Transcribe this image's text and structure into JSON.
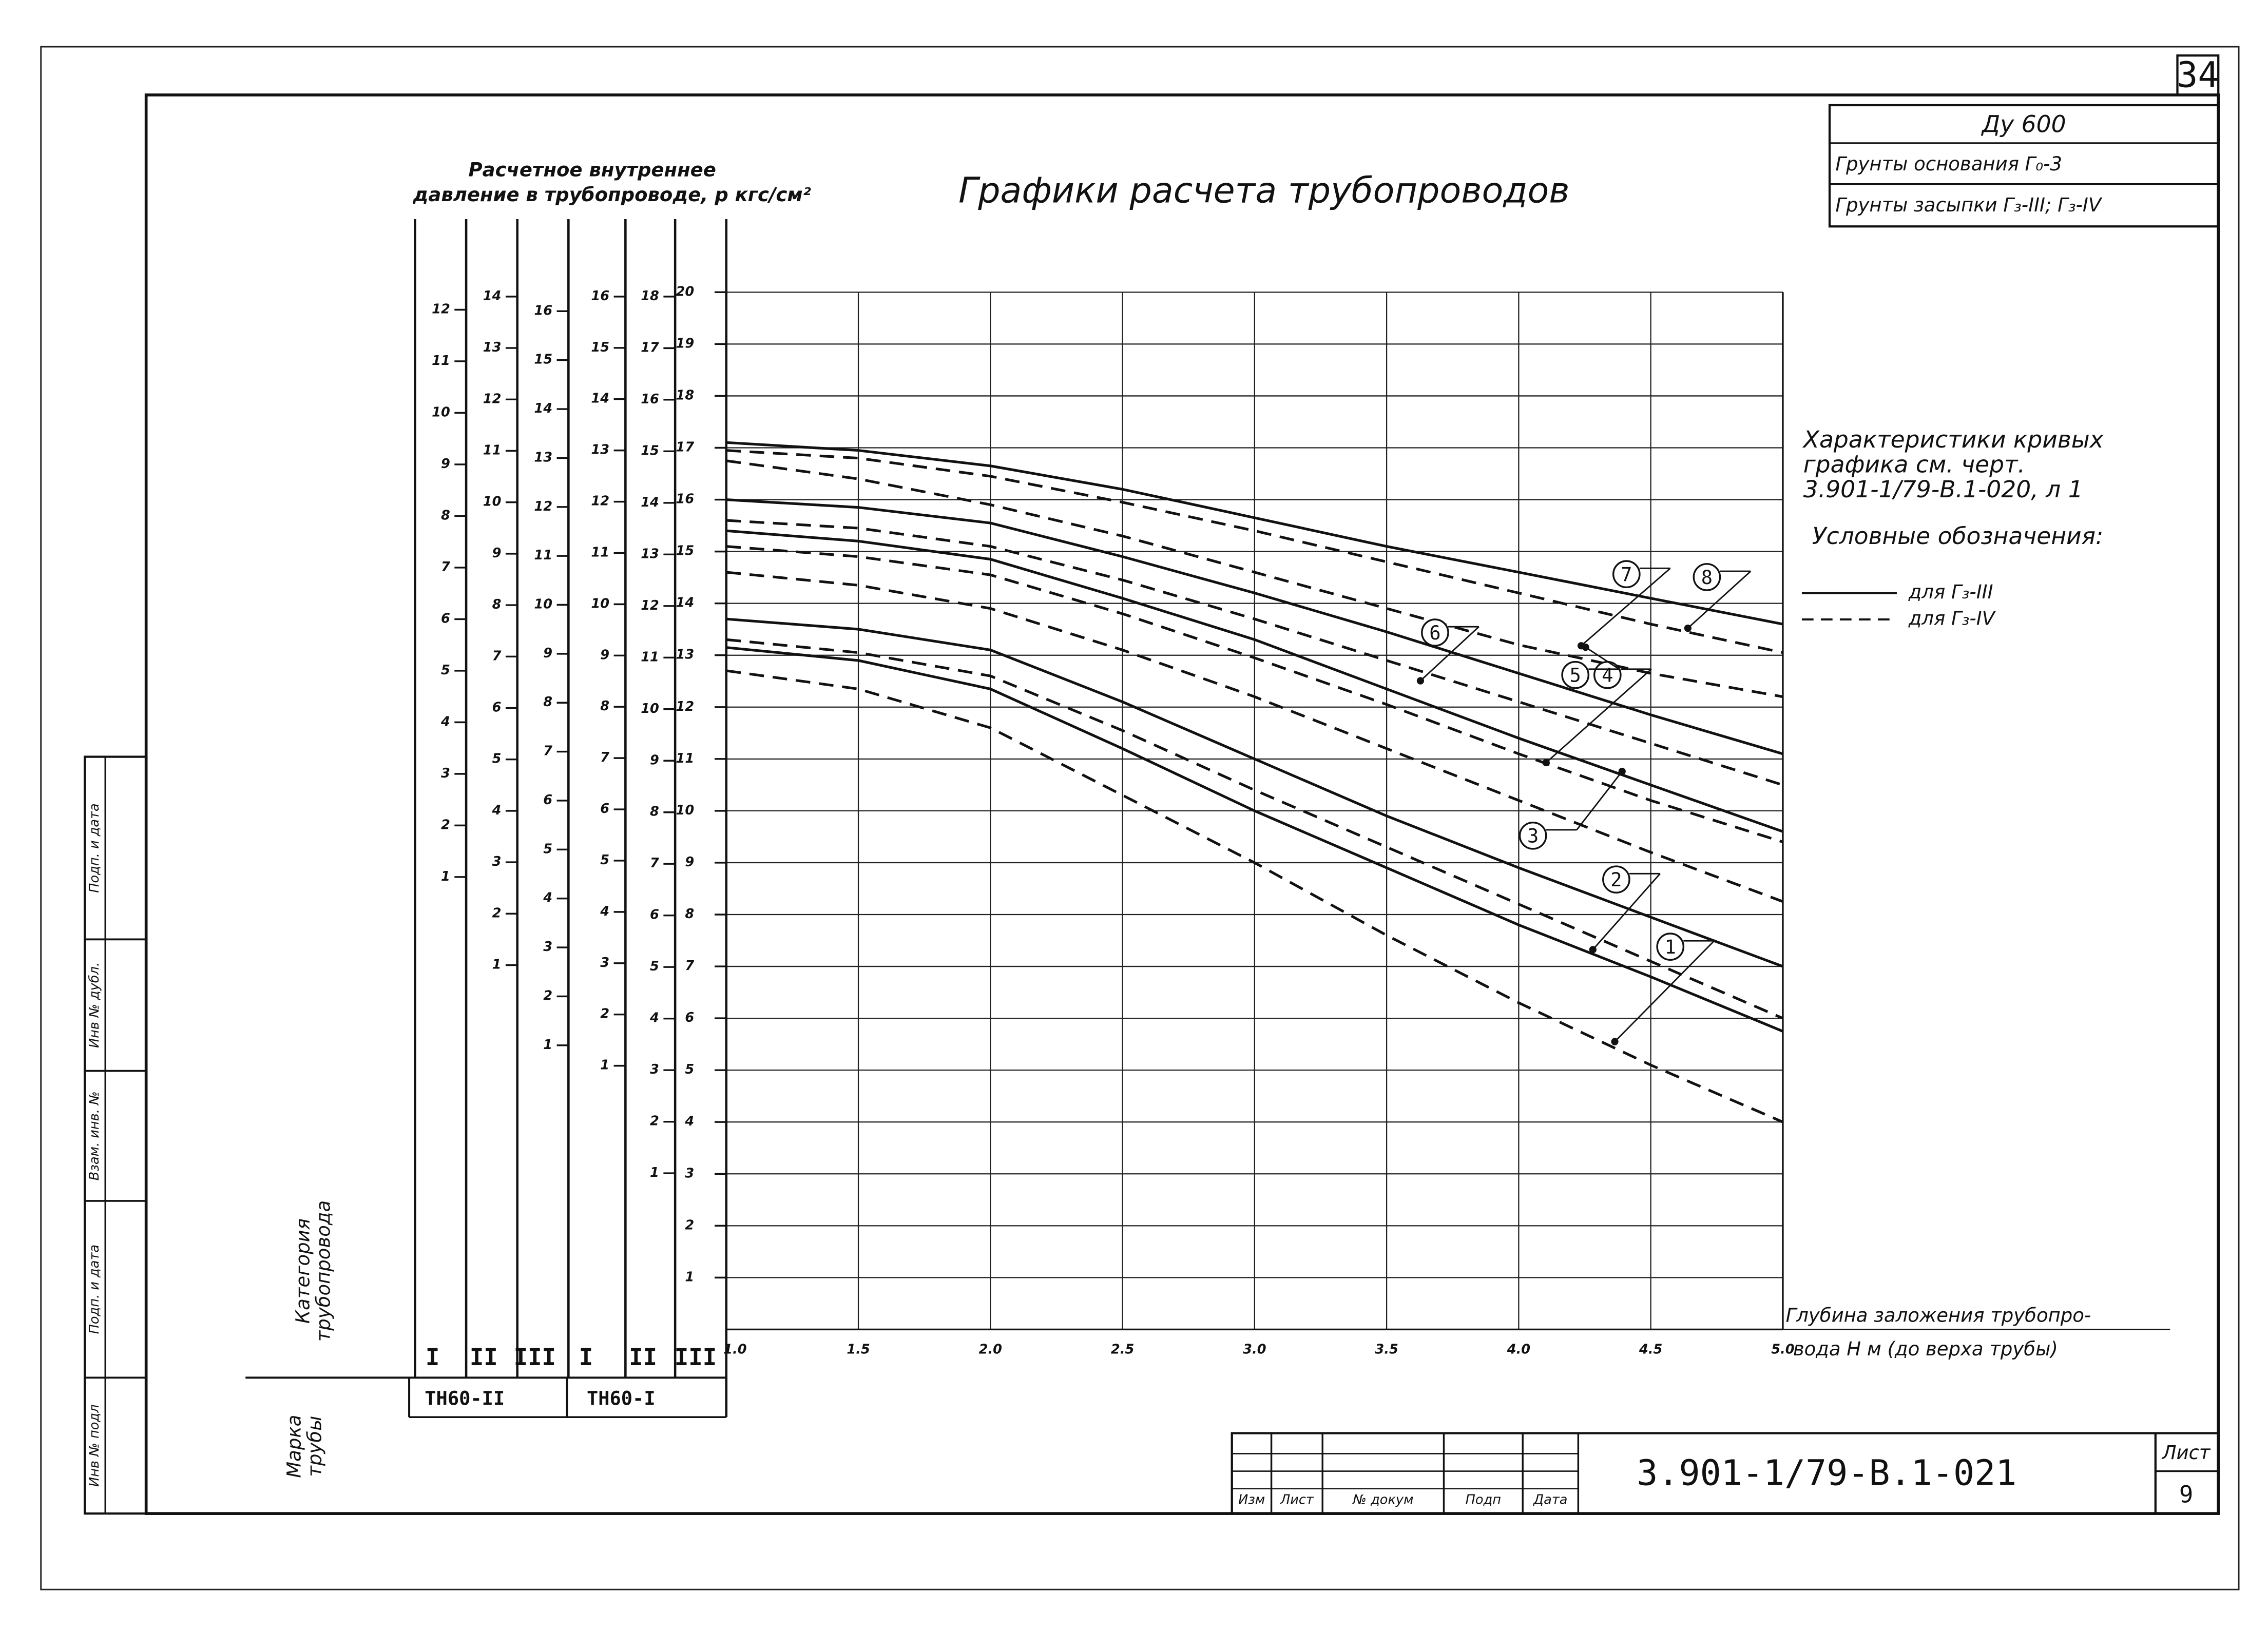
{
  "page_number": "34",
  "stamp": {
    "dn": "Ду 600",
    "base_soil": "Грунты основания Г₀-3",
    "fill_soil": "Грунты засыпки Г₃-III; Г₃-IV"
  },
  "pressure_label": [
    "Расчетное внутреннее",
    "давление в трубопроводе, р кгс/см²"
  ],
  "curve_note": [
    "Характеристики кривых",
    "графика см. черт.",
    "3.901-1/79-В.1-020, л 1"
  ],
  "legend": {
    "title": "Условные обозначения:",
    "solid": "для Г₃-III",
    "dashed": "для Г₃-IV"
  },
  "scales": {
    "category_label": [
      "Категория",
      "трубопровода"
    ],
    "brand_label": [
      "Марка",
      "трубы"
    ],
    "categories": [
      "I",
      "II",
      "III",
      "I",
      "II",
      "III"
    ],
    "brands": [
      "ТН60-II",
      "ТН60-I"
    ],
    "ticks": [
      [
        1,
        2,
        3,
        4,
        5,
        6,
        7,
        8,
        9,
        10,
        11,
        12
      ],
      [
        1,
        2,
        3,
        4,
        5,
        6,
        7,
        8,
        9,
        10,
        11,
        12,
        13,
        14
      ],
      [
        1,
        2,
        3,
        4,
        5,
        6,
        7,
        8,
        9,
        10,
        11,
        12,
        13,
        14,
        15,
        16
      ],
      [
        1,
        2,
        3,
        4,
        5,
        6,
        7,
        8,
        9,
        10,
        11,
        12,
        13,
        14,
        15,
        16
      ],
      [
        1,
        2,
        3,
        4,
        5,
        6,
        7,
        8,
        9,
        10,
        11,
        12,
        13,
        14,
        15,
        16,
        17,
        18
      ]
    ]
  },
  "margin_stamps": [
    "Инв № подл",
    "Подп. и дата",
    "Взам. инв. №",
    "Инв № дубл.",
    "Подп. и дата"
  ],
  "title_block": {
    "headers": [
      "Изм",
      "Лист",
      "№ докум",
      "Подп",
      "Дата"
    ],
    "code": "3.901-1/79-В.1-021",
    "sheet_label": "Лист",
    "sheet": "9"
  },
  "chart_data": {
    "type": "line",
    "title": "Графики расчета трубопроводов",
    "xlabel": [
      "Глубина заложения трубопро-",
      "вода Н м (до верха трубы)"
    ],
    "x": [
      1.0,
      1.5,
      2.0,
      2.5,
      3.0,
      3.5,
      4.0,
      4.5,
      5.0
    ],
    "xlim": [
      1,
      5
    ],
    "ylim": [
      0,
      20
    ],
    "xticks": [
      {
        "value": 1,
        "label": "1.0"
      },
      1.5,
      {
        "value": 2,
        "label": "2.0"
      },
      2.5,
      {
        "value": 3,
        "label": "3.0"
      },
      3.5,
      {
        "value": 4,
        "label": "4.0"
      },
      4.5,
      {
        "value": 5,
        "label": "5.0"
      }
    ],
    "yticks": [
      1,
      2,
      3,
      4,
      5,
      6,
      7,
      8,
      9,
      10,
      11,
      12,
      13,
      14,
      15,
      16,
      17,
      18,
      19,
      20
    ],
    "grid": true,
    "curve_labels": [
      "1",
      "2",
      "3",
      "4",
      "5",
      "6",
      "7",
      "8"
    ],
    "series": [
      {
        "color": "#111",
        "dash": false,
        "values": [
          17.1,
          16.95,
          16.65,
          16.2,
          15.65,
          15.1,
          14.6,
          14.1,
          13.6
        ]
      },
      {
        "color": "#111",
        "dash": true,
        "values": [
          16.95,
          16.8,
          16.45,
          15.95,
          15.4,
          14.8,
          14.2,
          13.6,
          13.05
        ]
      },
      {
        "color": "#111",
        "dash": true,
        "values": [
          16.75,
          16.4,
          15.9,
          15.3,
          14.6,
          13.9,
          13.2,
          12.65,
          12.2
        ]
      },
      {
        "color": "#111",
        "dash": false,
        "values": [
          16.0,
          15.85,
          15.55,
          14.9,
          14.2,
          13.45,
          12.65,
          11.85,
          11.1
        ]
      },
      {
        "color": "#111",
        "dash": true,
        "values": [
          15.6,
          15.45,
          15.1,
          14.45,
          13.7,
          12.9,
          12.1,
          11.3,
          10.5
        ]
      },
      {
        "color": "#111",
        "dash": false,
        "values": [
          15.4,
          15.2,
          14.85,
          14.1,
          13.3,
          12.35,
          11.4,
          10.5,
          9.6
        ]
      },
      {
        "color": "#111",
        "dash": true,
        "values": [
          15.1,
          14.9,
          14.55,
          13.8,
          12.95,
          12.05,
          11.1,
          10.2,
          9.4
        ]
      },
      {
        "color": "#111",
        "dash": true,
        "values": [
          14.6,
          14.35,
          13.9,
          13.1,
          12.2,
          11.2,
          10.2,
          9.2,
          8.25
        ]
      },
      {
        "color": "#111",
        "dash": false,
        "values": [
          13.7,
          13.5,
          13.1,
          12.1,
          11.0,
          9.9,
          8.9,
          7.95,
          7.0
        ]
      },
      {
        "color": "#111",
        "dash": true,
        "values": [
          13.3,
          13.05,
          12.6,
          11.55,
          10.4,
          9.3,
          8.2,
          7.1,
          6.0
        ]
      },
      {
        "color": "#111",
        "dash": false,
        "values": [
          13.15,
          12.9,
          12.35,
          11.2,
          10.0,
          8.9,
          7.8,
          6.8,
          5.75
        ]
      },
      {
        "color": "#111",
        "dash": true,
        "values": [
          12.7,
          12.35,
          11.6,
          10.3,
          9.0,
          7.6,
          6.3,
          5.1,
          4.0
        ]
      }
    ]
  }
}
